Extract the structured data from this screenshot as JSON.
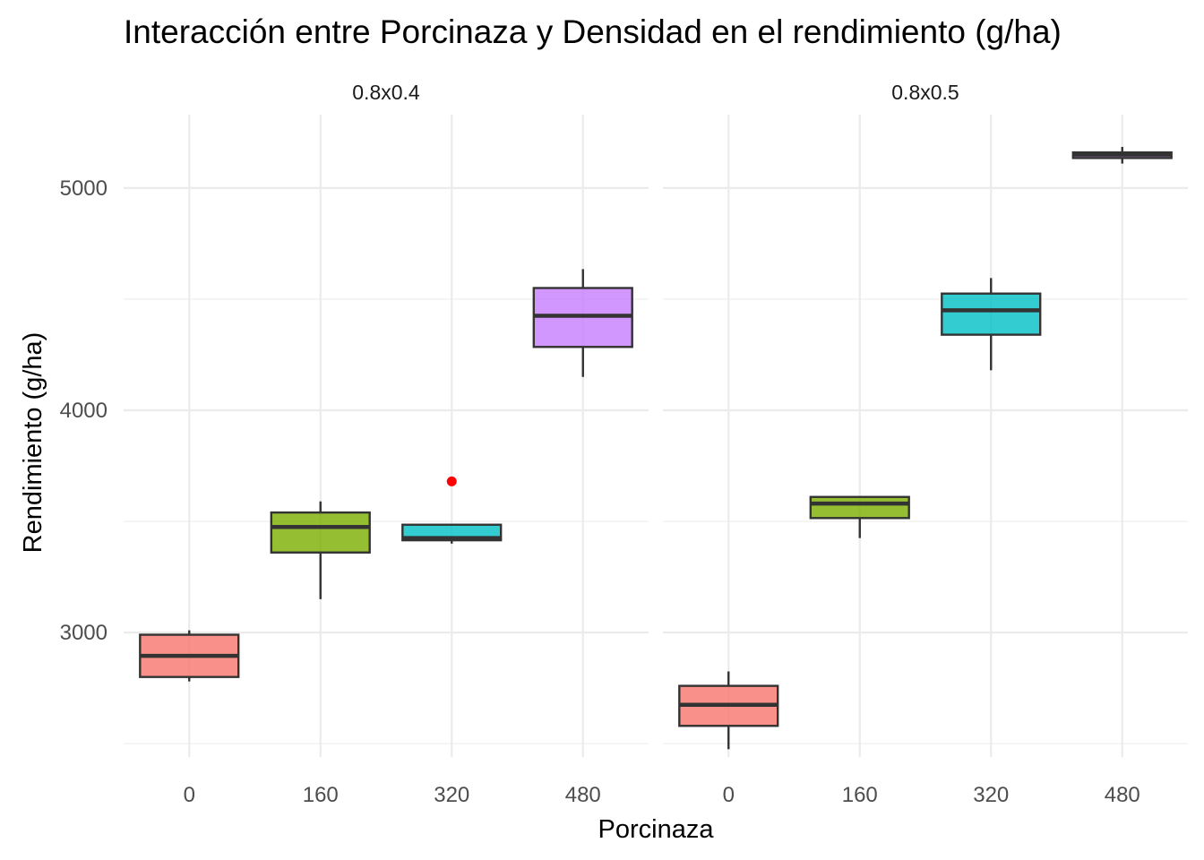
{
  "chart_data": {
    "type": "boxplot",
    "title": "Interacción entre Porcinaza y Densidad en el rendimiento (g/ha)",
    "xlabel": "Porcinaza",
    "ylabel": "Rendimiento (g/ha)",
    "categories": [
      "0",
      "160",
      "320",
      "480"
    ],
    "y_ticks": [
      3000,
      4000,
      5000
    ],
    "ylim": [
      2440,
      5330
    ],
    "grid": true,
    "legend": "none",
    "colors": {
      "0": "#F8766D",
      "160": "#7CAE00",
      "320": "#00BFC4",
      "480": "#C77CFF"
    },
    "outlier_color": "#FF0000",
    "panels": [
      {
        "label": "0.8x0.4",
        "boxes": [
          {
            "x": "0",
            "min": 2780,
            "q1": 2800,
            "median": 2895,
            "q3": 2990,
            "max": 3010,
            "outliers": []
          },
          {
            "x": "160",
            "min": 3150,
            "q1": 3360,
            "median": 3475,
            "q3": 3540,
            "max": 3590,
            "outliers": []
          },
          {
            "x": "320",
            "min": 3400,
            "q1": 3415,
            "median": 3425,
            "q3": 3485,
            "max": 3485,
            "outliers": [
              3680
            ]
          },
          {
            "x": "480",
            "min": 4150,
            "q1": 4285,
            "median": 4425,
            "q3": 4550,
            "max": 4635,
            "outliers": []
          }
        ]
      },
      {
        "label": "0.8x0.5",
        "boxes": [
          {
            "x": "0",
            "min": 2475,
            "q1": 2580,
            "median": 2675,
            "q3": 2760,
            "max": 2825,
            "outliers": []
          },
          {
            "x": "160",
            "min": 3425,
            "q1": 3515,
            "median": 3580,
            "q3": 3610,
            "max": 3610,
            "outliers": []
          },
          {
            "x": "320",
            "min": 4180,
            "q1": 4340,
            "median": 4450,
            "q3": 4525,
            "max": 4595,
            "outliers": []
          },
          {
            "x": "480",
            "min": 5110,
            "q1": 5135,
            "median": 5150,
            "q3": 5160,
            "max": 5185,
            "outliers": []
          }
        ]
      }
    ]
  }
}
